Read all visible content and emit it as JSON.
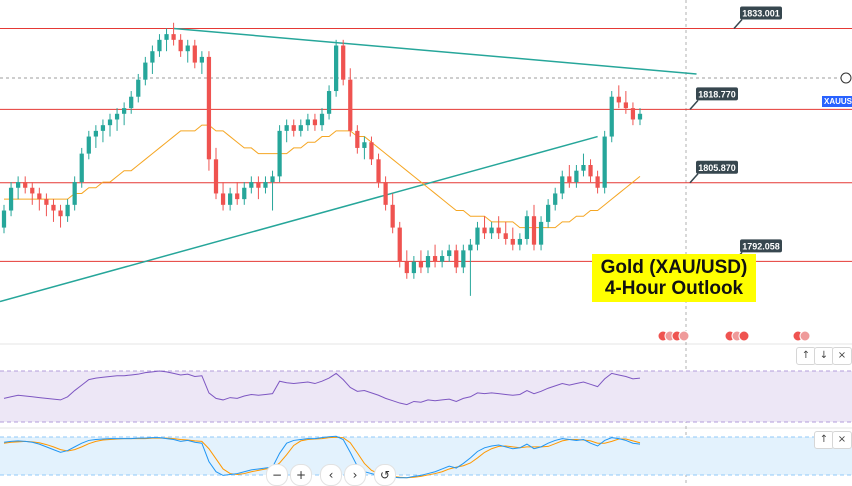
{
  "title": {
    "line1": "Gold (XAU/USD)",
    "line2": "4-Hour Outlook"
  },
  "symbol_tag": "XAUUSD",
  "colors": {
    "up": "#26a69a",
    "down": "#ef5350",
    "level_line": "#e53935",
    "trendline": "#26a69a",
    "ma": "#f5a623",
    "rsi": "#7e57c2",
    "stoch_k": "#2196f3",
    "stoch_d": "#ff9800",
    "label_bg": "#37474f",
    "title_bg": "#ffff00"
  },
  "controls": {
    "zoom_out": "−",
    "zoom_in": "+",
    "back": "‹",
    "forward": "›",
    "reset": "↺",
    "up": "↑",
    "down": "↓",
    "close": "×"
  },
  "chart_data": {
    "type": "candlestick",
    "timeframe": "4-Hour",
    "ylim": [
      1780,
      1838
    ],
    "levels": [
      {
        "value": 1833.001,
        "label": "1833.001"
      },
      {
        "value": 1818.77,
        "label": "1818.770"
      },
      {
        "value": 1805.87,
        "label": "1805.870"
      },
      {
        "value": 1792.058,
        "label": "1792.058"
      }
    ],
    "candles": [
      [
        1798,
        1802,
        1797,
        1801
      ],
      [
        1801,
        1806,
        1800,
        1805
      ],
      [
        1805,
        1807,
        1803,
        1806
      ],
      [
        1806,
        1807,
        1804,
        1805
      ],
      [
        1805,
        1806,
        1802,
        1804
      ],
      [
        1804,
        1805,
        1801,
        1803
      ],
      [
        1803,
        1804,
        1800,
        1802
      ],
      [
        1802,
        1803,
        1799,
        1801
      ],
      [
        1801,
        1802,
        1798,
        1800
      ],
      [
        1800,
        1803,
        1799,
        1802
      ],
      [
        1802,
        1807,
        1801,
        1806
      ],
      [
        1806,
        1812,
        1805,
        1811
      ],
      [
        1811,
        1815,
        1810,
        1814
      ],
      [
        1814,
        1816,
        1812,
        1815
      ],
      [
        1815,
        1817,
        1813,
        1816
      ],
      [
        1816,
        1818,
        1814,
        1817
      ],
      [
        1817,
        1819,
        1815,
        1818
      ],
      [
        1818,
        1820,
        1816,
        1819
      ],
      [
        1819,
        1822,
        1818,
        1821
      ],
      [
        1821,
        1825,
        1820,
        1824
      ],
      [
        1824,
        1828,
        1823,
        1827
      ],
      [
        1827,
        1830,
        1825,
        1829
      ],
      [
        1829,
        1832,
        1828,
        1831
      ],
      [
        1831,
        1833,
        1829,
        1832
      ],
      [
        1832,
        1834,
        1830,
        1831
      ],
      [
        1831,
        1832,
        1828,
        1829
      ],
      [
        1829,
        1831,
        1827,
        1830
      ],
      [
        1830,
        1831,
        1826,
        1827
      ],
      [
        1827,
        1829,
        1825,
        1828
      ],
      [
        1828,
        1829,
        1808,
        1810
      ],
      [
        1810,
        1812,
        1803,
        1804
      ],
      [
        1804,
        1806,
        1801,
        1802
      ],
      [
        1802,
        1805,
        1801,
        1804
      ],
      [
        1804,
        1806,
        1802,
        1803
      ],
      [
        1803,
        1806,
        1802,
        1805
      ],
      [
        1805,
        1807,
        1804,
        1806
      ],
      [
        1806,
        1807,
        1803,
        1805
      ],
      [
        1805,
        1807,
        1804,
        1806
      ],
      [
        1806,
        1808,
        1801,
        1807
      ],
      [
        1807,
        1816,
        1806,
        1815
      ],
      [
        1815,
        1817,
        1813,
        1816
      ],
      [
        1816,
        1817,
        1814,
        1815
      ],
      [
        1815,
        1817,
        1814,
        1816
      ],
      [
        1816,
        1818,
        1815,
        1817
      ],
      [
        1817,
        1818,
        1815,
        1816
      ],
      [
        1816,
        1819,
        1815,
        1818
      ],
      [
        1818,
        1823,
        1817,
        1822
      ],
      [
        1822,
        1831,
        1821,
        1830
      ],
      [
        1830,
        1831,
        1823,
        1824
      ],
      [
        1824,
        1826,
        1814,
        1815
      ],
      [
        1815,
        1816,
        1811,
        1812
      ],
      [
        1812,
        1814,
        1810,
        1813
      ],
      [
        1813,
        1814,
        1809,
        1810
      ],
      [
        1810,
        1811,
        1805,
        1806
      ],
      [
        1806,
        1807,
        1801,
        1802
      ],
      [
        1802,
        1804,
        1797,
        1798
      ],
      [
        1798,
        1799,
        1791,
        1792
      ],
      [
        1792,
        1794,
        1789,
        1790
      ],
      [
        1790,
        1793,
        1789,
        1792
      ],
      [
        1792,
        1794,
        1790,
        1791
      ],
      [
        1791,
        1794,
        1790,
        1793
      ],
      [
        1793,
        1795,
        1791,
        1792
      ],
      [
        1792,
        1794,
        1791,
        1793
      ],
      [
        1793,
        1795,
        1792,
        1794
      ],
      [
        1794,
        1795,
        1790,
        1791
      ],
      [
        1791,
        1795,
        1790,
        1794
      ],
      [
        1794,
        1796,
        1786,
        1795
      ],
      [
        1795,
        1799,
        1794,
        1798
      ],
      [
        1798,
        1800,
        1796,
        1797
      ],
      [
        1797,
        1799,
        1796,
        1798
      ],
      [
        1798,
        1800,
        1796,
        1797
      ],
      [
        1797,
        1799,
        1795,
        1796
      ],
      [
        1796,
        1798,
        1794,
        1795
      ],
      [
        1795,
        1797,
        1794,
        1796
      ],
      [
        1796,
        1801,
        1795,
        1800
      ],
      [
        1800,
        1802,
        1794,
        1795
      ],
      [
        1795,
        1800,
        1794,
        1799
      ],
      [
        1799,
        1803,
        1798,
        1802
      ],
      [
        1802,
        1805,
        1801,
        1804
      ],
      [
        1804,
        1808,
        1803,
        1807
      ],
      [
        1807,
        1809,
        1805,
        1806
      ],
      [
        1806,
        1809,
        1805,
        1808
      ],
      [
        1808,
        1811,
        1807,
        1809
      ],
      [
        1809,
        1810,
        1806,
        1807
      ],
      [
        1807,
        1808,
        1804,
        1805
      ],
      [
        1805,
        1815,
        1804,
        1814
      ],
      [
        1814,
        1822,
        1813,
        1821
      ],
      [
        1821,
        1823,
        1819,
        1820
      ],
      [
        1820,
        1822,
        1818,
        1819
      ],
      [
        1819,
        1820,
        1816,
        1817
      ],
      [
        1817,
        1819,
        1816,
        1818
      ]
    ],
    "ma": [
      1803,
      1803,
      1803,
      1803,
      1803,
      1803,
      1803,
      1803,
      1803,
      1803,
      1804,
      1804,
      1805,
      1805,
      1806,
      1806,
      1807,
      1808,
      1808,
      1809,
      1810,
      1811,
      1812,
      1813,
      1814,
      1815,
      1815,
      1815,
      1816,
      1816,
      1815,
      1815,
      1814,
      1813,
      1812,
      1812,
      1811,
      1811,
      1811,
      1811,
      1811,
      1812,
      1812,
      1813,
      1813,
      1814,
      1814,
      1815,
      1815,
      1815,
      1814,
      1814,
      1813,
      1812,
      1811,
      1810,
      1809,
      1808,
      1807,
      1806,
      1805,
      1804,
      1803,
      1802,
      1801,
      1801,
      1800,
      1800,
      1800,
      1799,
      1799,
      1799,
      1799,
      1798,
      1798,
      1798,
      1798,
      1798,
      1798,
      1799,
      1799,
      1800,
      1800,
      1801,
      1801,
      1802,
      1803,
      1804,
      1805,
      1806,
      1807
    ],
    "trendlines": [
      {
        "from": [
          24,
          1833
        ],
        "to": [
          98,
          1825
        ]
      },
      {
        "from": [
          0,
          1785
        ],
        "to": [
          84,
          1814
        ]
      }
    ],
    "rsi": [
      38,
      40,
      42,
      41,
      40,
      39,
      38,
      37,
      36,
      40,
      48,
      55,
      62,
      64,
      65,
      66,
      67,
      67,
      68,
      69,
      71,
      72,
      73,
      72,
      70,
      68,
      69,
      66,
      67,
      45,
      38,
      36,
      39,
      38,
      41,
      43,
      42,
      43,
      44,
      60,
      58,
      57,
      58,
      59,
      57,
      60,
      64,
      70,
      62,
      52,
      47,
      48,
      45,
      42,
      38,
      35,
      32,
      30,
      34,
      33,
      36,
      35,
      36,
      37,
      34,
      38,
      40,
      45,
      44,
      45,
      44,
      43,
      42,
      43,
      48,
      44,
      47,
      51,
      54,
      57,
      55,
      57,
      59,
      56,
      53,
      63,
      70,
      68,
      66,
      63,
      64
    ],
    "stoch_k": [
      82,
      84,
      85,
      84,
      82,
      78,
      72,
      66,
      60,
      64,
      72,
      80,
      86,
      88,
      89,
      90,
      90,
      90,
      90,
      91,
      91,
      92,
      92,
      90,
      88,
      84,
      86,
      82,
      80,
      40,
      18,
      10,
      12,
      14,
      18,
      22,
      24,
      26,
      28,
      58,
      80,
      86,
      88,
      90,
      90,
      92,
      94,
      95,
      88,
      60,
      30,
      18,
      14,
      10,
      8,
      6,
      5,
      5,
      8,
      10,
      14,
      18,
      24,
      30,
      26,
      36,
      48,
      62,
      70,
      74,
      76,
      72,
      68,
      70,
      78,
      68,
      72,
      80,
      86,
      90,
      88,
      86,
      88,
      80,
      74,
      86,
      92,
      90,
      86,
      80,
      78
    ],
    "stoch_d": [
      80,
      82,
      83,
      84,
      83,
      81,
      77,
      72,
      66,
      63,
      66,
      72,
      79,
      84,
      87,
      88,
      89,
      90,
      90,
      90,
      90,
      91,
      91,
      91,
      90,
      88,
      87,
      85,
      84,
      68,
      46,
      24,
      14,
      12,
      14,
      18,
      21,
      24,
      26,
      37,
      55,
      75,
      85,
      88,
      89,
      90,
      92,
      93,
      92,
      81,
      59,
      36,
      21,
      14,
      11,
      8,
      6,
      5,
      6,
      8,
      11,
      14,
      18,
      24,
      28,
      31,
      37,
      48,
      60,
      68,
      73,
      74,
      72,
      70,
      72,
      72,
      72,
      73,
      79,
      85,
      88,
      88,
      87,
      85,
      80,
      80,
      84,
      89,
      89,
      85,
      81
    ]
  }
}
